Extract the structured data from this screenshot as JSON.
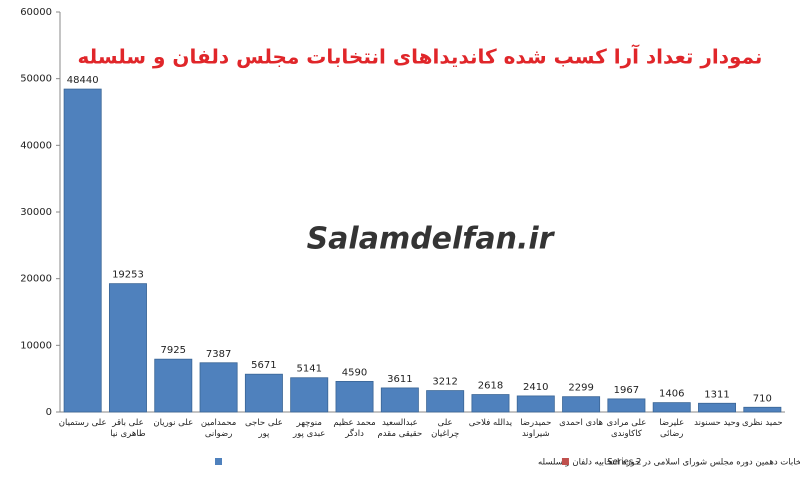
{
  "chart_data": {
    "type": "bar",
    "title": "نمودار تعداد آرا کسب شده کاندیداهای انتخابات مجلس دلفان و سلسله",
    "watermark": "Salamdelfan.ir",
    "categories": [
      "علی رستمیان",
      "علی باقر\nطاهری نیا",
      "علی نوریان",
      "محمدامین\nرضوانی",
      "علی حاجی\nپور",
      "منوچهر\nعبدی پور",
      "محمد عظیم\nدادگر",
      "عبدالسعید\nحقیقی مقدم",
      "علی\nچراغیان",
      "یدالله فلاحی",
      "حمیدرضا\nشیراوند",
      "هادی احمدی",
      "علی مرادی\nکاکاوندی",
      "علیرضا رضائی",
      "وحید حسنوند",
      "حمید نظری"
    ],
    "series": [
      {
        "name": "نتیجه نهایی انتخابات دهمین دوره مجلس شورای اسلامی در حوزه انتخابیه دلفان و سلسله",
        "color": "#4f81bd",
        "values": [
          48440,
          19253,
          7925,
          7387,
          5671,
          5141,
          4590,
          3611,
          3212,
          2618,
          2410,
          2299,
          1967,
          1406,
          1311,
          710
        ]
      },
      {
        "name": "Series 2",
        "color": "#c0504d",
        "values": [
          null,
          null,
          null,
          null,
          null,
          null,
          null,
          null,
          null,
          null,
          null,
          null,
          null,
          null,
          null,
          null
        ]
      }
    ],
    "ylim": [
      0,
      60000
    ],
    "yticks": [
      0,
      10000,
      20000,
      30000,
      40000,
      50000,
      60000
    ]
  }
}
